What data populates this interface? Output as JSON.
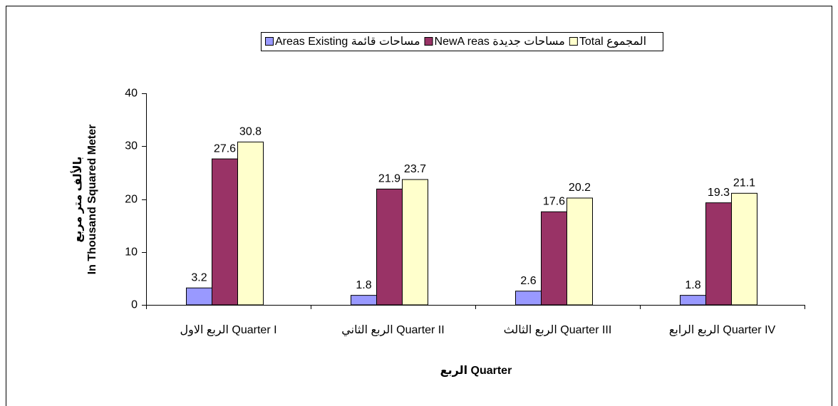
{
  "chart_data": {
    "type": "bar",
    "categories": [
      "الربع الاول Quarter I",
      "الربع الثاني Quarter II",
      "الربع الثالث Quarter III",
      "الربع الرابع Quarter IV"
    ],
    "series": [
      {
        "name": "Areas Existing مساحات قائمة",
        "color": "#9999ff",
        "values": [
          3.2,
          1.8,
          2.6,
          1.8
        ]
      },
      {
        "name": "NewA reas مساحات جديدة",
        "color": "#993366",
        "values": [
          27.6,
          21.9,
          17.6,
          19.3
        ]
      },
      {
        "name": "Total المجموع",
        "color": "#ffffcc",
        "values": [
          30.8,
          23.7,
          20.2,
          21.1
        ]
      }
    ],
    "x_label": "الربع Quarter",
    "y_label": [
      "In Thousand Squared Meter",
      "بالألف متر مربع"
    ],
    "ylim": [
      0,
      40
    ],
    "yticks": [
      0,
      10,
      20,
      30,
      40
    ],
    "grid": false,
    "legend": "top"
  }
}
